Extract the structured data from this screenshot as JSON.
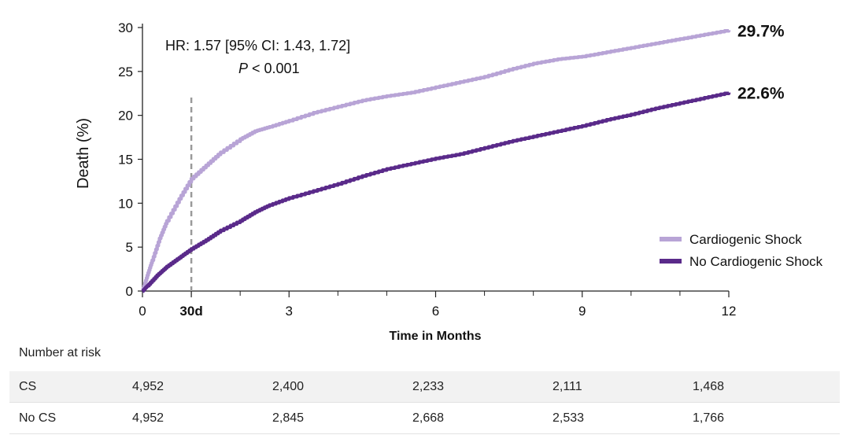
{
  "chart_data": {
    "type": "line",
    "ylabel": "Death (%)",
    "xlabel": "Time in Months",
    "ylim": [
      0,
      30
    ],
    "xlim": [
      0,
      12
    ],
    "y_ticks": [
      0,
      5,
      10,
      15,
      20,
      25,
      30
    ],
    "x_ticks": [
      {
        "value": 0,
        "label": "0",
        "bold": false
      },
      {
        "value": 1,
        "label": "30d",
        "bold": true
      },
      {
        "value": 3,
        "label": "3",
        "bold": false
      },
      {
        "value": 6,
        "label": "6",
        "bold": false
      },
      {
        "value": 9,
        "label": "9",
        "bold": false
      },
      {
        "value": 12,
        "label": "12",
        "bold": false
      }
    ],
    "minor_x_ticks": [
      1,
      2,
      4,
      5,
      7,
      8,
      10,
      11
    ],
    "reference_line_x": 1,
    "annotation": {
      "hr": "HR: 1.57 [95% CI: 1.43, 1.72]",
      "p_letter": "P",
      "p_rest": " < 0.001"
    },
    "legend_position": "bottom-right",
    "series": [
      {
        "name": "Cardiogenic Shock",
        "color": "#b8a4d6",
        "end_label": "29.7%",
        "x": [
          0,
          0.1,
          0.2,
          0.35,
          0.5,
          0.75,
          1,
          1.3,
          1.6,
          2,
          2.3,
          2.6,
          3,
          3.5,
          4,
          4.5,
          5,
          5.5,
          6,
          6.5,
          7,
          7.5,
          8,
          8.5,
          9,
          9.5,
          10,
          10.5,
          11,
          11.5,
          12
        ],
        "y": [
          0,
          1.8,
          3.5,
          6,
          8,
          10.5,
          12.8,
          14.3,
          15.8,
          17.3,
          18.2,
          18.7,
          19.4,
          20.3,
          21.0,
          21.7,
          22.2,
          22.6,
          23.2,
          23.8,
          24.4,
          25.2,
          25.9,
          26.4,
          26.7,
          27.2,
          27.7,
          28.2,
          28.7,
          29.2,
          29.7
        ]
      },
      {
        "name": "No Cardiogenic Shock",
        "color": "#5a2a8a",
        "end_label": "22.6%",
        "x": [
          0,
          0.1,
          0.3,
          0.5,
          0.75,
          1,
          1.3,
          1.6,
          2,
          2.3,
          2.6,
          3,
          3.5,
          4,
          4.5,
          5,
          5.5,
          6,
          6.5,
          7,
          7.5,
          8,
          8.5,
          9,
          9.5,
          10,
          10.5,
          11,
          11.5,
          12
        ],
        "y": [
          0,
          0.6,
          1.8,
          2.8,
          3.8,
          4.8,
          5.8,
          6.9,
          8.0,
          9.0,
          9.8,
          10.6,
          11.4,
          12.2,
          13.1,
          13.9,
          14.5,
          15.1,
          15.6,
          16.3,
          17.0,
          17.6,
          18.2,
          18.8,
          19.5,
          20.1,
          20.8,
          21.4,
          22.0,
          22.6
        ]
      }
    ]
  },
  "risk_table": {
    "title": "Number at risk",
    "rows": [
      {
        "label": "CS",
        "values": [
          "4,952",
          "2,400",
          "2,233",
          "2,111",
          "1,468"
        ]
      },
      {
        "label": "No CS",
        "values": [
          "4,952",
          "2,845",
          "2,668",
          "2,533",
          "1,766"
        ]
      }
    ]
  }
}
